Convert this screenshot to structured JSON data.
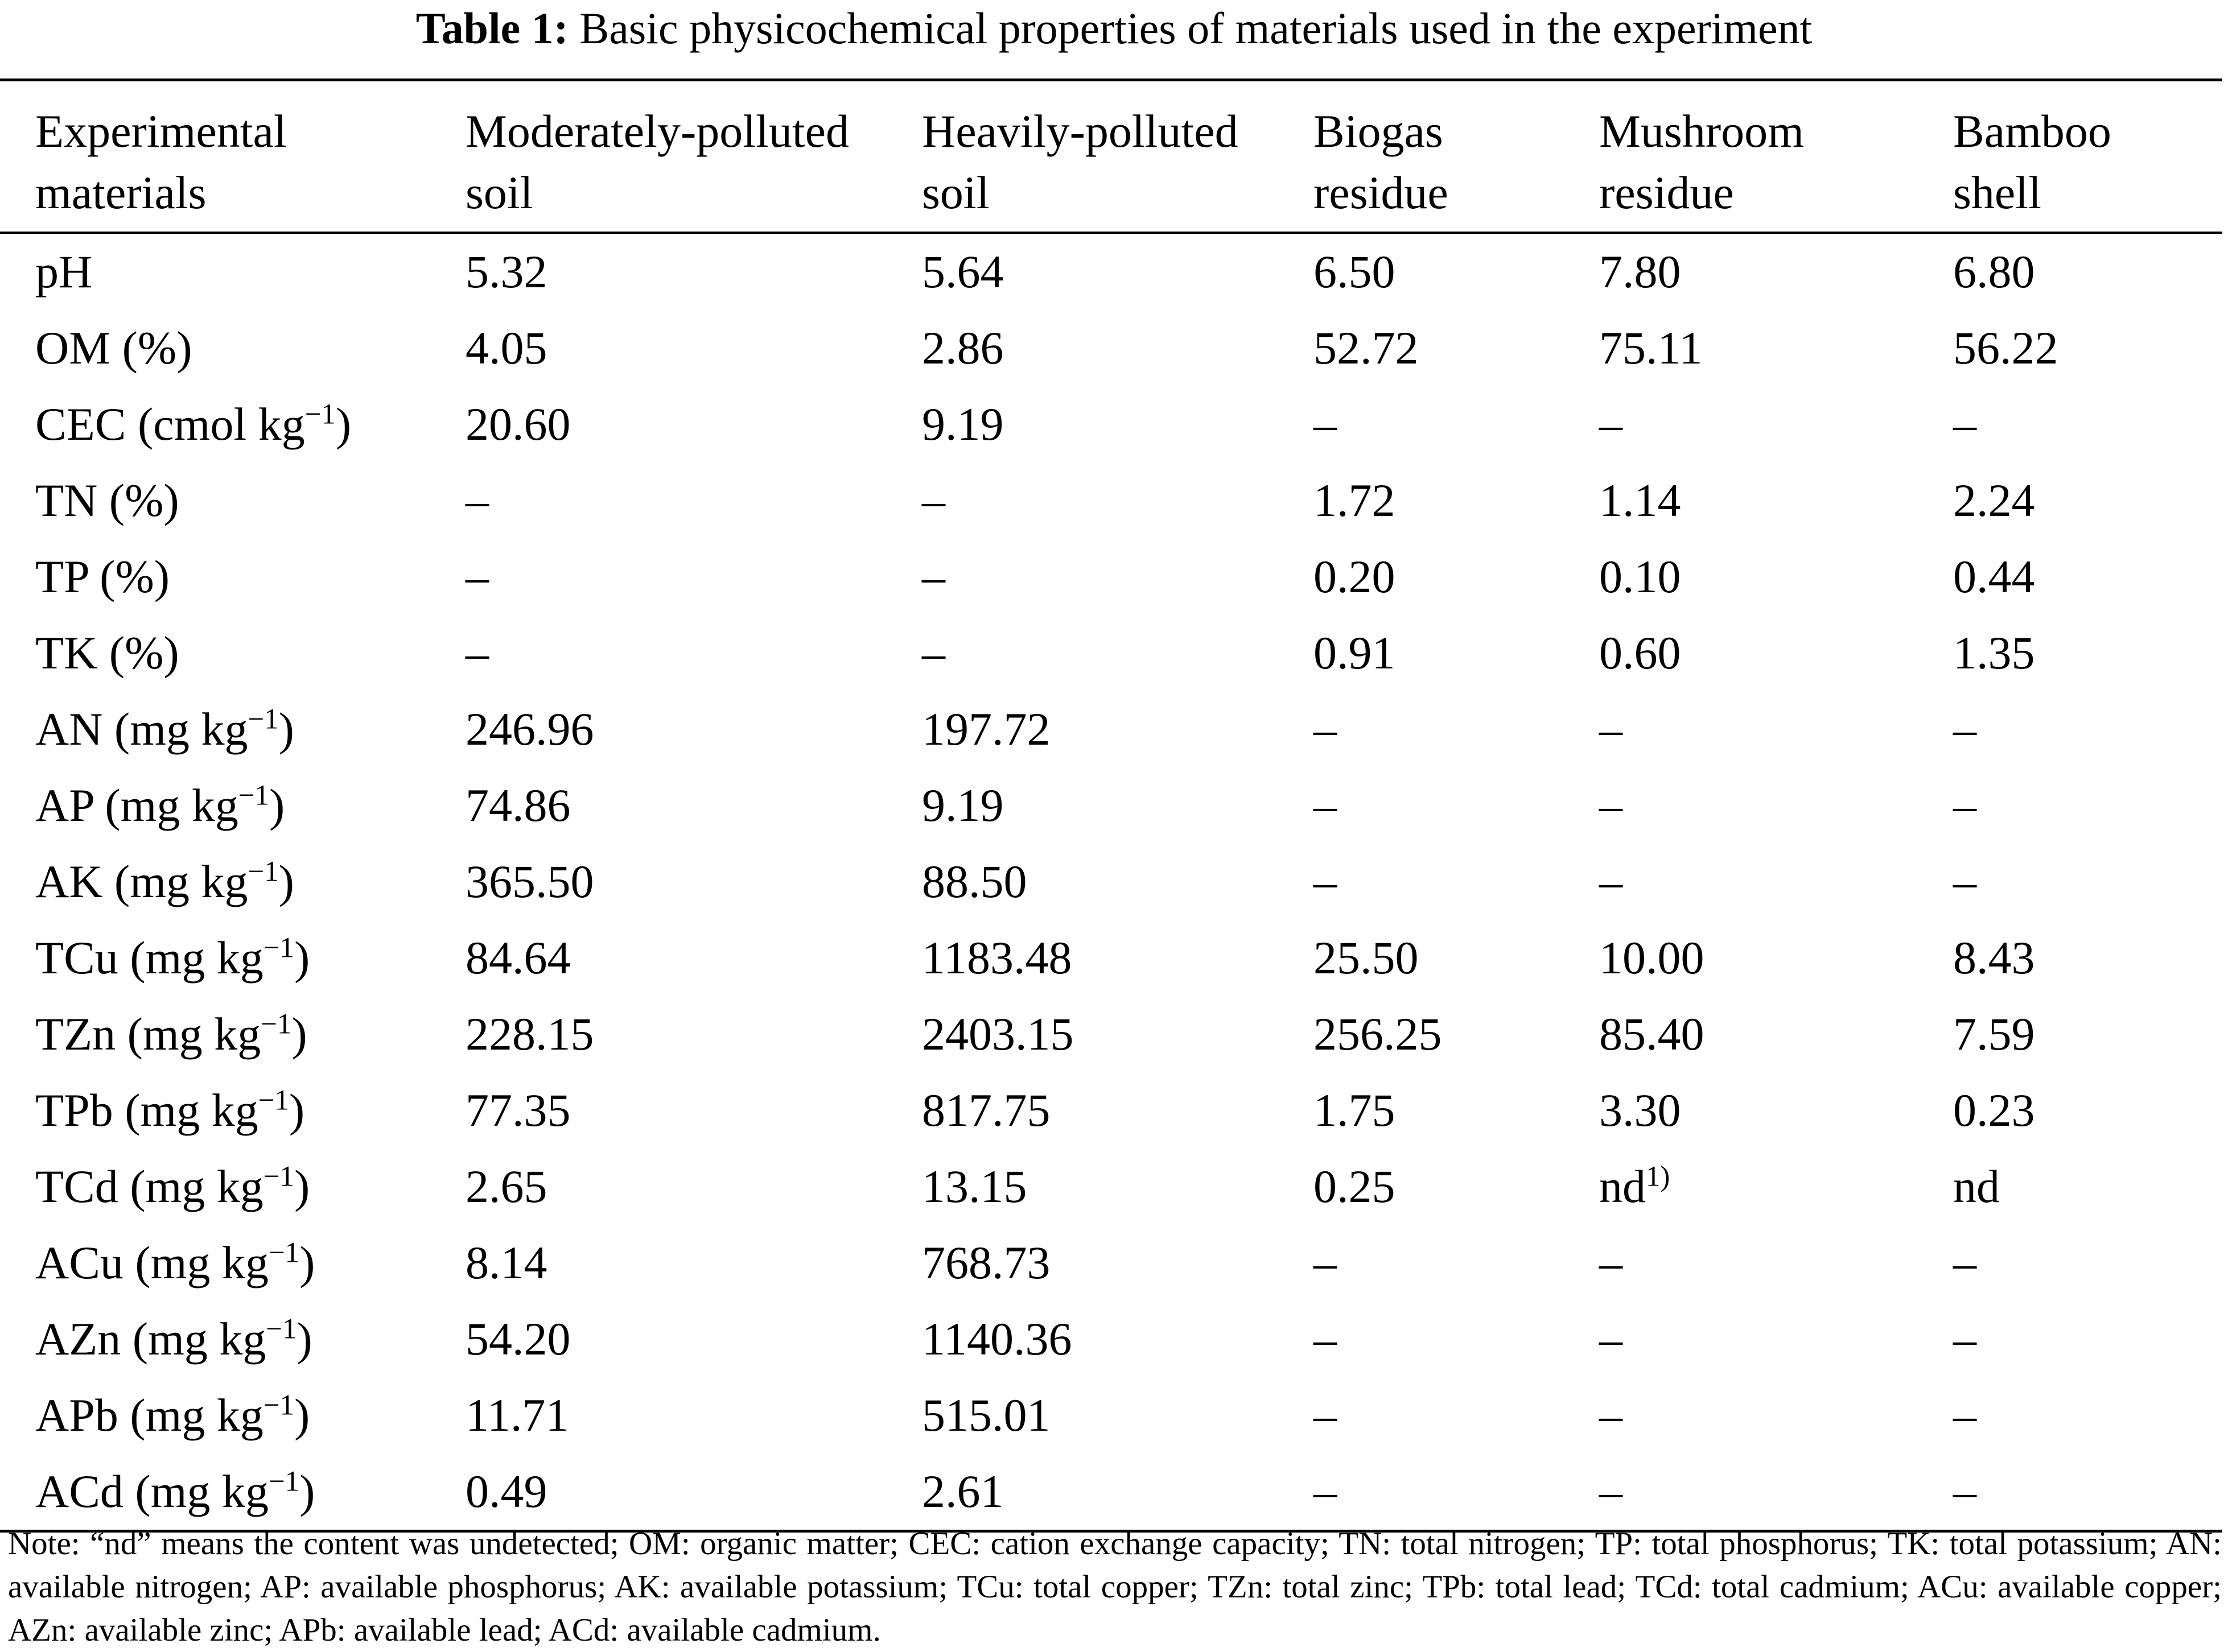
{
  "caption": {
    "label": "Table 1:",
    "text": "Basic physicochemical properties of materials used in the experiment"
  },
  "table": {
    "headers": [
      {
        "line1": "Experimental",
        "line2": "materials"
      },
      {
        "line1": "Moderately-polluted",
        "line2": "soil"
      },
      {
        "line1": "Heavily-polluted",
        "line2": "soil"
      },
      {
        "line1": "Biogas",
        "line2": "residue"
      },
      {
        "line1": "Mushroom",
        "line2": "residue"
      },
      {
        "line1": "Bamboo",
        "line2": "shell"
      }
    ],
    "rows": [
      {
        "label": "pH",
        "unit": "",
        "values": [
          "5.32",
          "5.64",
          "6.50",
          "7.80",
          "6.80"
        ]
      },
      {
        "label": "OM (%)",
        "unit": "",
        "values": [
          "4.05",
          "2.86",
          "52.72",
          "75.11",
          "56.22"
        ]
      },
      {
        "label": "CEC (cmol kg",
        "unit": "−1",
        "values": [
          "20.60",
          "9.19",
          "–",
          "–",
          "–"
        ]
      },
      {
        "label": "TN (%)",
        "unit": "",
        "values": [
          "–",
          "–",
          "1.72",
          "1.14",
          "2.24"
        ]
      },
      {
        "label": "TP (%)",
        "unit": "",
        "values": [
          "–",
          "–",
          "0.20",
          "0.10",
          "0.44"
        ]
      },
      {
        "label": "TK (%)",
        "unit": "",
        "values": [
          "–",
          "–",
          "0.91",
          "0.60",
          "1.35"
        ]
      },
      {
        "label": "AN (mg kg",
        "unit": "−1",
        "values": [
          "246.96",
          "197.72",
          "–",
          "–",
          "–"
        ]
      },
      {
        "label": "AP (mg kg",
        "unit": "−1",
        "values": [
          "74.86",
          "9.19",
          "–",
          "–",
          "–"
        ]
      },
      {
        "label": "AK (mg kg",
        "unit": "−1",
        "values": [
          "365.50",
          "88.50",
          "–",
          "–",
          "–"
        ]
      },
      {
        "label": "TCu (mg kg",
        "unit": "−1",
        "values": [
          "84.64",
          "1183.48",
          "25.50",
          "10.00",
          "8.43"
        ]
      },
      {
        "label": "TZn (mg kg",
        "unit": "−1",
        "values": [
          "228.15",
          "2403.15",
          "256.25",
          "85.40",
          "7.59"
        ]
      },
      {
        "label": "TPb (mg kg",
        "unit": "−1",
        "values": [
          "77.35",
          "817.75",
          "1.75",
          "3.30",
          "0.23"
        ]
      },
      {
        "label": "TCd (mg kg",
        "unit": "−1",
        "values": [
          "2.65",
          "13.15",
          "0.25",
          "nd",
          "nd"
        ],
        "footnote_col": 3,
        "footnote": "1)"
      },
      {
        "label": "ACu (mg kg",
        "unit": "−1",
        "values": [
          "8.14",
          "768.73",
          "–",
          "–",
          "–"
        ]
      },
      {
        "label": "AZn (mg kg",
        "unit": "−1",
        "values": [
          "54.20",
          "1140.36",
          "–",
          "–",
          "–"
        ]
      },
      {
        "label": "APb (mg kg",
        "unit": "−1",
        "values": [
          "11.71",
          "515.01",
          "–",
          "–",
          "–"
        ]
      },
      {
        "label": "ACd (mg kg",
        "unit": "−1",
        "values": [
          "0.49",
          "2.61",
          "–",
          "–",
          "–"
        ]
      }
    ]
  },
  "note": "Note: “nd” means the content was undetected; OM: organic matter; CEC: cation exchange capacity; TN: total nitrogen; TP: total phosphorus; TK: total potassium; AN: available nitrogen; AP: available phosphorus; AK: available potassium; TCu: total copper; TZn: total zinc; TPb: total lead; TCd: total cadmium; ACu: available copper; AZn: available zinc; APb: available lead; ACd: available cadmium."
}
